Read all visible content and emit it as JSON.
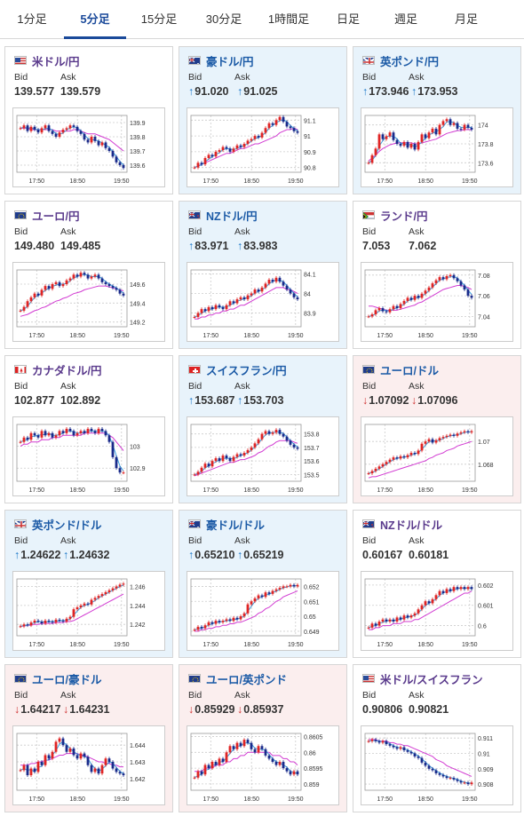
{
  "tabs": [
    {
      "label": "1分足",
      "active": false
    },
    {
      "label": "5分足",
      "active": true
    },
    {
      "label": "15分足",
      "active": false
    },
    {
      "label": "30分足",
      "active": false
    },
    {
      "label": "1時間足",
      "active": false
    },
    {
      "label": "日足",
      "active": false
    },
    {
      "label": "週足",
      "active": false
    },
    {
      "label": "月足",
      "active": false
    }
  ],
  "labels": {
    "bid": "Bid",
    "ask": "Ask"
  },
  "x_ticks": [
    "17:50",
    "18:50",
    "19:50"
  ],
  "pairs": [
    {
      "name": "米ドル/円",
      "bid": "139.577",
      "ask": "139.579",
      "dir": "none",
      "flag": "us",
      "y_ticks": [
        "139.9",
        "139.8",
        "139.7",
        "139.6"
      ],
      "ylim": [
        139.55,
        139.95
      ],
      "series": [
        139.86,
        139.88,
        139.84,
        139.87,
        139.85,
        139.83,
        139.86,
        139.88,
        139.84,
        139.82,
        139.8,
        139.83,
        139.85,
        139.86,
        139.88,
        139.87,
        139.84,
        139.82,
        139.78,
        139.76,
        139.8,
        139.77,
        139.74,
        139.76,
        139.72,
        139.7,
        139.66,
        139.62,
        139.6,
        139.58
      ],
      "ma": [
        139.86,
        139.86,
        139.86,
        139.85,
        139.85,
        139.85,
        139.85,
        139.85,
        139.85,
        139.85,
        139.84,
        139.84,
        139.84,
        139.84,
        139.84,
        139.85,
        139.85,
        139.84,
        139.83,
        139.82,
        139.82,
        139.82,
        139.81,
        139.8,
        139.79,
        139.78,
        139.76,
        139.74,
        139.72,
        139.7
      ]
    },
    {
      "name": "豪ドル/円",
      "bid": "91.020",
      "ask": "91.025",
      "dir": "up",
      "flag": "au",
      "y_ticks": [
        "91.1",
        "91",
        "90.9",
        "90.8"
      ],
      "ylim": [
        90.77,
        91.13
      ],
      "series": [
        90.8,
        90.83,
        90.82,
        90.86,
        90.88,
        90.87,
        90.9,
        90.91,
        90.93,
        90.92,
        90.9,
        90.92,
        90.94,
        90.93,
        90.95,
        90.97,
        90.98,
        91.0,
        90.99,
        91.02,
        91.05,
        91.08,
        91.07,
        91.1,
        91.12,
        91.09,
        91.06,
        91.05,
        91.03,
        91.02
      ],
      "ma": [
        90.8,
        90.81,
        90.82,
        90.83,
        90.84,
        90.85,
        90.86,
        90.87,
        90.88,
        90.89,
        90.89,
        90.9,
        90.91,
        90.92,
        90.92,
        90.93,
        90.94,
        90.95,
        90.95,
        90.96,
        90.97,
        90.98,
        90.99,
        91.0,
        91.02,
        91.03,
        91.04,
        91.04,
        91.05,
        91.04
      ]
    },
    {
      "name": "英ポンド/円",
      "bid": "173.946",
      "ask": "173.953",
      "dir": "up",
      "flag": "gb",
      "y_ticks": [
        "174",
        "173.8",
        "173.6"
      ],
      "ylim": [
        173.5,
        174.1
      ],
      "series": [
        173.6,
        173.68,
        173.75,
        173.9,
        173.85,
        173.88,
        173.92,
        173.84,
        173.8,
        173.78,
        173.82,
        173.76,
        173.8,
        173.74,
        173.82,
        173.9,
        173.86,
        173.92,
        173.96,
        173.9,
        174.0,
        174.04,
        174.06,
        174.0,
        174.02,
        173.96,
        173.95,
        174.0,
        173.97,
        173.95
      ],
      "ma": [
        173.62,
        173.65,
        173.68,
        173.72,
        173.75,
        173.77,
        173.79,
        173.8,
        173.81,
        173.81,
        173.81,
        173.81,
        173.81,
        173.8,
        173.8,
        173.81,
        173.82,
        173.83,
        173.84,
        173.85,
        173.87,
        173.89,
        173.91,
        173.92,
        173.93,
        173.94,
        173.94,
        173.95,
        173.95,
        173.95
      ]
    },
    {
      "name": "ユーロ/円",
      "bid": "149.480",
      "ask": "149.485",
      "dir": "none",
      "flag": "eu",
      "y_ticks": [
        "149.6",
        "149.4",
        "149.2"
      ],
      "ylim": [
        149.15,
        149.75
      ],
      "series": [
        149.32,
        149.36,
        149.42,
        149.46,
        149.5,
        149.48,
        149.54,
        149.58,
        149.55,
        149.6,
        149.62,
        149.58,
        149.6,
        149.64,
        149.66,
        149.7,
        149.68,
        149.72,
        149.7,
        149.66,
        149.68,
        149.7,
        149.66,
        149.62,
        149.6,
        149.58,
        149.56,
        149.54,
        149.5,
        149.48
      ],
      "ma": [
        149.26,
        149.27,
        149.28,
        149.3,
        149.32,
        149.33,
        149.35,
        149.36,
        149.38,
        149.4,
        149.42,
        149.43,
        149.45,
        149.46,
        149.48,
        149.5,
        149.51,
        149.52,
        149.54,
        149.55,
        149.56,
        149.57,
        149.58,
        149.58,
        149.58,
        149.57,
        149.56,
        149.55,
        149.54,
        149.53
      ]
    },
    {
      "name": "NZドル/円",
      "bid": "83.971",
      "ask": "83.983",
      "dir": "up",
      "flag": "nz",
      "y_ticks": [
        "84.1",
        "84",
        "83.9"
      ],
      "ylim": [
        83.83,
        84.12
      ],
      "series": [
        83.88,
        83.9,
        83.92,
        83.91,
        83.93,
        83.92,
        83.94,
        83.93,
        83.92,
        83.94,
        83.96,
        83.95,
        83.97,
        83.98,
        83.97,
        83.99,
        84.0,
        84.02,
        84.01,
        84.03,
        84.05,
        84.07,
        84.06,
        84.08,
        84.06,
        84.04,
        84.02,
        84.0,
        83.98,
        83.97
      ],
      "ma": [
        83.87,
        83.87,
        83.88,
        83.88,
        83.89,
        83.89,
        83.9,
        83.9,
        83.91,
        83.91,
        83.92,
        83.92,
        83.93,
        83.94,
        83.94,
        83.95,
        83.96,
        83.97,
        83.98,
        83.99,
        84.0,
        84.01,
        84.02,
        84.03,
        84.03,
        84.03,
        84.02,
        84.02,
        84.01,
        84.0
      ]
    },
    {
      "name": "ランド/円",
      "bid": "7.053",
      "ask": "7.062",
      "dir": "none",
      "flag": "za",
      "y_ticks": [
        "7.08",
        "7.06",
        "7.04"
      ],
      "ylim": [
        7.03,
        7.085
      ],
      "series": [
        7.04,
        7.042,
        7.046,
        7.048,
        7.045,
        7.044,
        7.047,
        7.05,
        7.048,
        7.052,
        7.055,
        7.058,
        7.056,
        7.06,
        7.058,
        7.062,
        7.065,
        7.068,
        7.072,
        7.075,
        7.078,
        7.076,
        7.079,
        7.08,
        7.077,
        7.074,
        7.07,
        7.066,
        7.06,
        7.058
      ],
      "ma": [
        7.05,
        7.05,
        7.049,
        7.048,
        7.047,
        7.046,
        7.046,
        7.046,
        7.046,
        7.047,
        7.048,
        7.049,
        7.05,
        7.051,
        7.053,
        7.054,
        7.056,
        7.058,
        7.06,
        7.062,
        7.064,
        7.066,
        7.067,
        7.068,
        7.069,
        7.07,
        7.07,
        7.069,
        7.068,
        7.066
      ]
    },
    {
      "name": "カナダドル/円",
      "bid": "102.877",
      "ask": "102.892",
      "dir": "none",
      "flag": "ca",
      "y_ticks": [
        "103",
        "102.9"
      ],
      "ylim": [
        102.84,
        103.1
      ],
      "series": [
        103.02,
        103.04,
        103.03,
        103.06,
        103.05,
        103.04,
        103.07,
        103.05,
        103.06,
        103.04,
        103.05,
        103.07,
        103.06,
        103.08,
        103.07,
        103.05,
        103.06,
        103.07,
        103.06,
        103.08,
        103.07,
        103.06,
        103.08,
        103.07,
        103.05,
        103.02,
        102.95,
        102.9,
        102.88,
        102.88
      ],
      "ma": [
        103.0,
        103.01,
        103.01,
        103.02,
        103.02,
        103.02,
        103.03,
        103.03,
        103.03,
        103.04,
        103.04,
        103.04,
        103.05,
        103.05,
        103.05,
        103.05,
        103.05,
        103.05,
        103.06,
        103.06,
        103.06,
        103.06,
        103.06,
        103.06,
        103.06,
        103.05,
        103.04,
        103.02,
        103.0,
        102.98
      ]
    },
    {
      "name": "スイスフラン/円",
      "bid": "153.687",
      "ask": "153.703",
      "dir": "up",
      "flag": "ch",
      "y_ticks": [
        "153.8",
        "153.7",
        "153.6",
        "153.5"
      ],
      "ylim": [
        153.45,
        153.87
      ],
      "series": [
        153.5,
        153.52,
        153.55,
        153.58,
        153.56,
        153.6,
        153.62,
        153.6,
        153.64,
        153.62,
        153.6,
        153.63,
        153.65,
        153.64,
        153.66,
        153.68,
        153.7,
        153.73,
        153.76,
        153.8,
        153.82,
        153.8,
        153.81,
        153.83,
        153.8,
        153.78,
        153.75,
        153.72,
        153.7,
        153.69
      ],
      "ma": [
        153.49,
        153.5,
        153.51,
        153.52,
        153.53,
        153.54,
        153.55,
        153.56,
        153.57,
        153.58,
        153.59,
        153.59,
        153.6,
        153.61,
        153.61,
        153.62,
        153.63,
        153.64,
        153.66,
        153.67,
        153.69,
        153.71,
        153.72,
        153.74,
        153.75,
        153.75,
        153.75,
        153.75,
        153.74,
        153.73
      ]
    },
    {
      "name": "ユーロ/ドル",
      "bid": "1.07092",
      "ask": "1.07096",
      "dir": "down",
      "flag": "eu",
      "y_ticks": [
        "1.07",
        "1.068"
      ],
      "ylim": [
        1.0665,
        1.0715
      ],
      "series": [
        1.0672,
        1.0674,
        1.0676,
        1.0678,
        1.068,
        1.0682,
        1.0684,
        1.0686,
        1.0685,
        1.0687,
        1.0686,
        1.0688,
        1.069,
        1.0689,
        1.0692,
        1.0698,
        1.07,
        1.0702,
        1.0699,
        1.0701,
        1.0703,
        1.0704,
        1.0705,
        1.0706,
        1.0705,
        1.0707,
        1.0708,
        1.0709,
        1.0708,
        1.0709
      ],
      "ma": [
        1.0668,
        1.0669,
        1.0669,
        1.067,
        1.0671,
        1.0672,
        1.0673,
        1.0674,
        1.0675,
        1.0676,
        1.0677,
        1.0678,
        1.0679,
        1.068,
        1.0681,
        1.0682,
        1.0683,
        1.0685,
        1.0686,
        1.0688,
        1.0689,
        1.069,
        1.0692,
        1.0693,
        1.0694,
        1.0696,
        1.0697,
        1.0698,
        1.0699,
        1.07
      ]
    },
    {
      "name": "英ポンド/ドル",
      "bid": "1.24622",
      "ask": "1.24632",
      "dir": "up",
      "flag": "gb",
      "y_ticks": [
        "1.246",
        "1.244",
        "1.242"
      ],
      "ylim": [
        1.2408,
        1.2468
      ],
      "series": [
        1.2418,
        1.242,
        1.2419,
        1.2422,
        1.2424,
        1.2423,
        1.2421,
        1.2424,
        1.2423,
        1.2422,
        1.2425,
        1.2424,
        1.2423,
        1.2426,
        1.2428,
        1.2436,
        1.2438,
        1.244,
        1.2442,
        1.2441,
        1.2446,
        1.2448,
        1.245,
        1.2452,
        1.2454,
        1.2456,
        1.2458,
        1.246,
        1.2462,
        1.2463
      ],
      "ma": [
        1.2418,
        1.2418,
        1.2419,
        1.2419,
        1.242,
        1.242,
        1.2421,
        1.2421,
        1.2421,
        1.2421,
        1.2422,
        1.2422,
        1.2422,
        1.2423,
        1.2423,
        1.2424,
        1.2426,
        1.2428,
        1.243,
        1.2432,
        1.2434,
        1.2436,
        1.2438,
        1.244,
        1.2442,
        1.2444,
        1.2446,
        1.2448,
        1.245,
        1.2452
      ]
    },
    {
      "name": "豪ドル/ドル",
      "bid": "0.65210",
      "ask": "0.65219",
      "dir": "up",
      "flag": "au",
      "y_ticks": [
        "0.652",
        "0.651",
        "0.65",
        "0.649"
      ],
      "ylim": [
        0.6487,
        0.6525
      ],
      "series": [
        0.6491,
        0.6493,
        0.6492,
        0.6494,
        0.6496,
        0.6495,
        0.6497,
        0.6496,
        0.6497,
        0.6498,
        0.6497,
        0.6499,
        0.6498,
        0.65,
        0.6502,
        0.6508,
        0.651,
        0.6512,
        0.6514,
        0.6513,
        0.6516,
        0.6515,
        0.6517,
        0.6518,
        0.6519,
        0.652,
        0.652,
        0.6521,
        0.652,
        0.6521
      ],
      "ma": [
        0.649,
        0.649,
        0.6491,
        0.6491,
        0.6492,
        0.6492,
        0.6493,
        0.6493,
        0.6494,
        0.6494,
        0.6495,
        0.6495,
        0.6496,
        0.6496,
        0.6497,
        0.6498,
        0.6499,
        0.65,
        0.6502,
        0.6503,
        0.6505,
        0.6506,
        0.6508,
        0.651,
        0.6511,
        0.6513,
        0.6514,
        0.6515,
        0.6516,
        0.6517
      ]
    },
    {
      "name": "NZドル/ドル",
      "bid": "0.60167",
      "ask": "0.60181",
      "dir": "none",
      "flag": "nz",
      "y_ticks": [
        "0.602",
        "0.601",
        "0.6"
      ],
      "ylim": [
        0.5995,
        0.6023
      ],
      "series": [
        0.5999,
        0.6001,
        0.6,
        0.6002,
        0.6003,
        0.6002,
        0.6003,
        0.6002,
        0.6004,
        0.6003,
        0.6005,
        0.6004,
        0.6005,
        0.6006,
        0.6008,
        0.601,
        0.6012,
        0.6011,
        0.6013,
        0.6015,
        0.6017,
        0.6016,
        0.6018,
        0.6017,
        0.6019,
        0.6018,
        0.6019,
        0.6018,
        0.6019,
        0.6018
      ],
      "ma": [
        0.5998,
        0.5998,
        0.5999,
        0.5999,
        0.6,
        0.6,
        0.6,
        0.6001,
        0.6001,
        0.6001,
        0.6002,
        0.6002,
        0.6002,
        0.6003,
        0.6003,
        0.6004,
        0.6005,
        0.6006,
        0.6007,
        0.6008,
        0.6009,
        0.601,
        0.6011,
        0.6012,
        0.6013,
        0.6014,
        0.6015,
        0.6016,
        0.6016,
        0.6017
      ]
    },
    {
      "name": "ユーロ/豪ドル",
      "bid": "1.64217",
      "ask": "1.64231",
      "dir": "down",
      "flag": "eu",
      "y_ticks": [
        "1.644",
        "1.643",
        "1.642"
      ],
      "ylim": [
        1.6413,
        1.6447
      ],
      "series": [
        1.6425,
        1.6428,
        1.6422,
        1.6426,
        1.6424,
        1.643,
        1.6428,
        1.6434,
        1.6432,
        1.6436,
        1.6442,
        1.6444,
        1.644,
        1.6436,
        1.6438,
        1.6434,
        1.6432,
        1.6435,
        1.6433,
        1.6428,
        1.6424,
        1.6426,
        1.6423,
        1.6428,
        1.6432,
        1.643,
        1.6426,
        1.6424,
        1.6423,
        1.6422
      ],
      "ma": [
        1.6428,
        1.6428,
        1.6428,
        1.6429,
        1.6429,
        1.643,
        1.643,
        1.6431,
        1.6431,
        1.6432,
        1.6433,
        1.6434,
        1.6434,
        1.6435,
        1.6435,
        1.6435,
        1.6435,
        1.6434,
        1.6434,
        1.6433,
        1.6432,
        1.6431,
        1.643,
        1.643,
        1.6429,
        1.6429,
        1.6428,
        1.6428,
        1.6427,
        1.6427
      ]
    },
    {
      "name": "ユーロ/英ポンド",
      "bid": "0.85929",
      "ask": "0.85937",
      "dir": "down",
      "flag": "eu",
      "y_ticks": [
        "0.8605",
        "0.86",
        "0.8595",
        "0.859"
      ],
      "ylim": [
        0.8588,
        0.8606
      ],
      "series": [
        0.8592,
        0.8594,
        0.8593,
        0.8596,
        0.8595,
        0.8597,
        0.8596,
        0.8598,
        0.8597,
        0.86,
        0.8602,
        0.8601,
        0.8603,
        0.8602,
        0.8604,
        0.8603,
        0.8601,
        0.86,
        0.8602,
        0.8601,
        0.8599,
        0.8598,
        0.8597,
        0.8596,
        0.8597,
        0.8595,
        0.8594,
        0.8593,
        0.8594,
        0.8593
      ],
      "ma": [
        0.8594,
        0.8594,
        0.8594,
        0.8595,
        0.8595,
        0.8595,
        0.8596,
        0.8596,
        0.8596,
        0.8597,
        0.8597,
        0.8598,
        0.8598,
        0.8599,
        0.8599,
        0.86,
        0.86,
        0.86,
        0.86,
        0.86,
        0.86,
        0.86,
        0.8599,
        0.8599,
        0.8599,
        0.8598,
        0.8598,
        0.8597,
        0.8597,
        0.8596
      ]
    },
    {
      "name": "米ドル/スイスフラン",
      "bid": "0.90806",
      "ask": "0.90821",
      "dir": "none",
      "flag": "us",
      "y_ticks": [
        "0.911",
        "0.91",
        "0.909",
        "0.908"
      ],
      "ylim": [
        0.9076,
        0.9113
      ],
      "series": [
        0.9108,
        0.9109,
        0.9108,
        0.9107,
        0.9108,
        0.9106,
        0.9105,
        0.9104,
        0.9103,
        0.9104,
        0.9102,
        0.9101,
        0.91,
        0.9098,
        0.9097,
        0.9094,
        0.9092,
        0.909,
        0.9089,
        0.9087,
        0.9086,
        0.9085,
        0.9084,
        0.9084,
        0.9083,
        0.9082,
        0.9081,
        0.9081,
        0.908,
        0.9081
      ],
      "ma": [
        0.9109,
        0.9109,
        0.9109,
        0.9108,
        0.9108,
        0.9108,
        0.9107,
        0.9107,
        0.9106,
        0.9106,
        0.9105,
        0.9105,
        0.9104,
        0.9103,
        0.9102,
        0.9101,
        0.91,
        0.9099,
        0.9098,
        0.9096,
        0.9095,
        0.9094,
        0.9092,
        0.9091,
        0.909,
        0.9089,
        0.9088,
        0.9087,
        0.9086,
        0.9085
      ]
    }
  ]
}
